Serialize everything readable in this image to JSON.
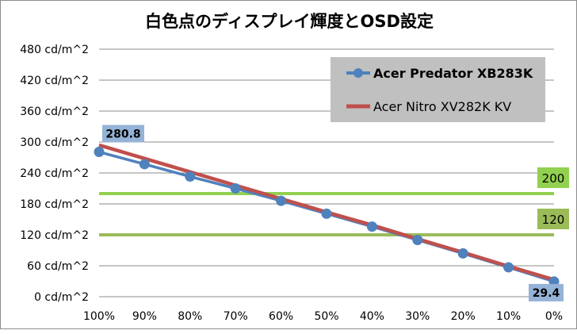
{
  "chart_data": {
    "type": "line",
    "title": "白色点のディスプレイ輝度とOSD設定",
    "categories": [
      "100%",
      "90%",
      "80%",
      "70%",
      "60%",
      "50%",
      "40%",
      "30%",
      "20%",
      "10%",
      "0%"
    ],
    "yticks": [
      "480 cd/m^2",
      "420 cd/m^2",
      "360 cd/m^2",
      "300 cd/m^2",
      "240 cd/m^2",
      "180 cd/m^2",
      "120 cd/m^2",
      "60 cd/m^2",
      "0 cd/m^2"
    ],
    "ylim": [
      0,
      480
    ],
    "series": [
      {
        "name": "Acer Predator XB283K",
        "color": "#4f81bd",
        "marker": "circle",
        "bold_legend": true,
        "values": [
          280.8,
          257,
          233,
          210,
          186,
          161,
          136,
          110,
          84,
          57,
          29.4
        ]
      },
      {
        "name": "Acer Nitro XV282K KV",
        "color": "#c0504d",
        "marker": "none",
        "bold_legend": false,
        "values": [
          294,
          268,
          242,
          216,
          190,
          164,
          139,
          112,
          86,
          59,
          33
        ]
      }
    ],
    "reference_lines": [
      {
        "value": 200,
        "label": "200",
        "color": "#92d050"
      },
      {
        "value": 120,
        "label": "120",
        "color": "#9bbb59"
      }
    ],
    "data_labels": [
      {
        "series": 0,
        "index": 0,
        "text": "280.8"
      },
      {
        "series": 0,
        "index": 10,
        "text": "29.4"
      }
    ],
    "legend_position": "top-right",
    "grid": true
  }
}
